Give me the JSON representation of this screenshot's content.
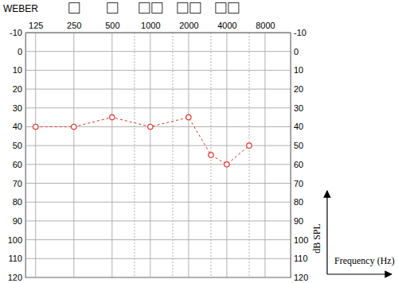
{
  "chart_data": {
    "type": "line",
    "annotation": "WEBER",
    "x_label": "Frequency (Hz)",
    "y_label": "dB SPL",
    "x": [
      125,
      250,
      500,
      1000,
      2000,
      3000,
      4000,
      6000
    ],
    "values": [
      40,
      40,
      35,
      40,
      35,
      55,
      60,
      50
    ],
    "color": "#e0302a",
    "marker": "circle",
    "line_style": "dashed",
    "log": "x",
    "xlim": [
      104,
      12700
    ],
    "xticks": [
      125,
      250,
      500,
      1000,
      2000,
      4000,
      8000
    ],
    "x_minor_ticks": [
      750,
      1500,
      3000,
      6000
    ],
    "ylim": [
      -10,
      120
    ],
    "yticks": [
      -10,
      0,
      10,
      20,
      30,
      40,
      50,
      60,
      70,
      80,
      90,
      100,
      110,
      120
    ],
    "grid": true
  }
}
